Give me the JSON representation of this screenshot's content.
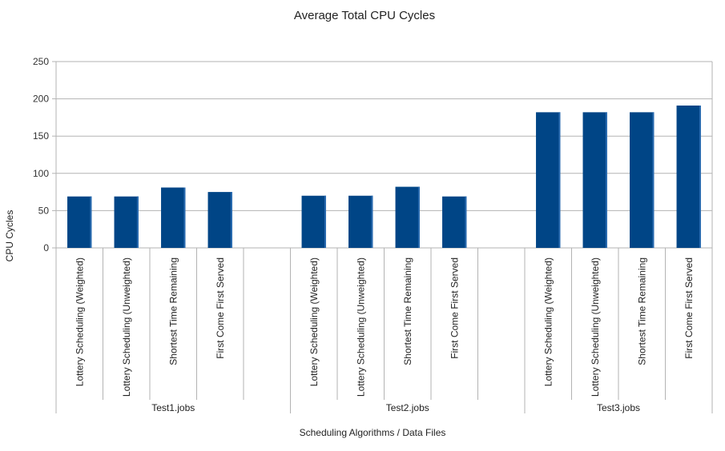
{
  "chart_data": {
    "type": "bar",
    "title": "Average Total CPU Cycles",
    "xlabel": "Scheduling Algorithms / Data Files",
    "ylabel": "CPU Cycles",
    "ylim": [
      0,
      250
    ],
    "yticks": [
      0,
      50,
      100,
      150,
      200,
      250
    ],
    "grid": true,
    "legend": "none",
    "bar_color": "#004586",
    "groups": [
      {
        "name": "Test1.jobs",
        "categories": [
          "Lottery Scheduling (Weighted)",
          "Lottery Scheduling (Unweighted)",
          "Shortest Time Remaining",
          "First Come First Served"
        ],
        "values": [
          69,
          69,
          81,
          75
        ]
      },
      {
        "name": "Test2.jobs",
        "categories": [
          "Lottery Scheduling (Weighted)",
          "Lottery Scheduling (Unweighted)",
          "Shortest Time Remaining",
          "First Come First Served"
        ],
        "values": [
          70,
          70,
          82,
          69
        ]
      },
      {
        "name": "Test3.jobs",
        "categories": [
          "Lottery Scheduling (Weighted)",
          "Lottery Scheduling (Unweighted)",
          "Shortest Time Remaining",
          "First Come First Served"
        ],
        "values": [
          182,
          182,
          182,
          191
        ]
      }
    ]
  }
}
